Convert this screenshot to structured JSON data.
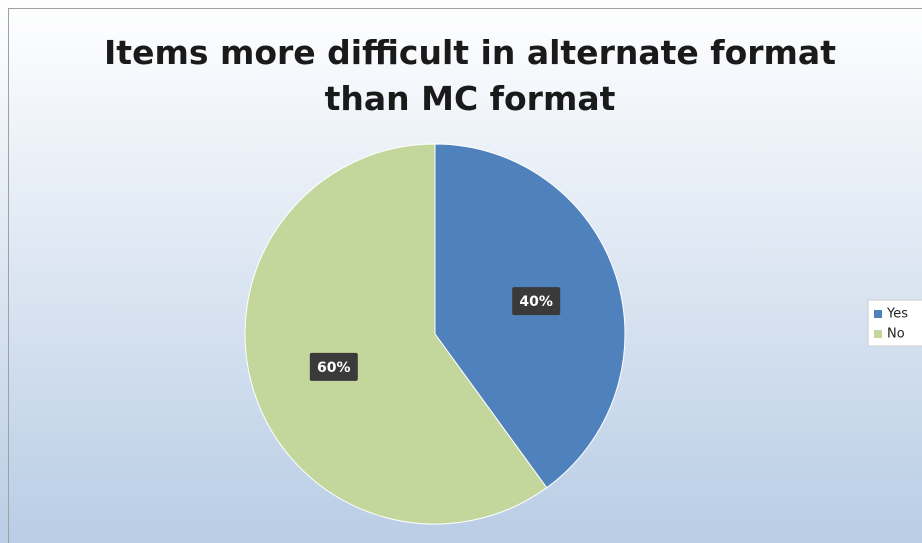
{
  "chart_data": {
    "type": "pie",
    "title": "Items more difficult in alternate format than MC format",
    "categories": [
      "Yes",
      "No"
    ],
    "values": [
      40,
      60
    ],
    "value_labels": [
      "40%",
      "60%"
    ],
    "colors": [
      "#4f81bd",
      "#c3d69b"
    ],
    "legend": "right"
  }
}
